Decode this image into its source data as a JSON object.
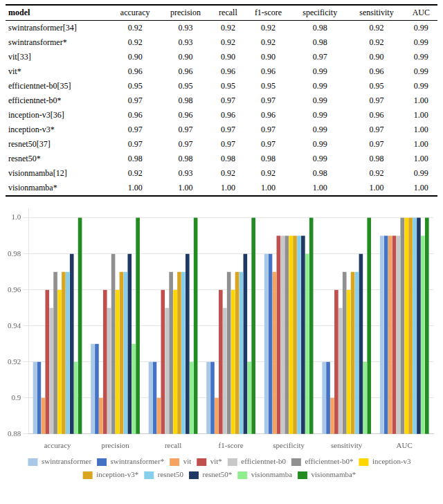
{
  "chart_data": [
    {
      "type": "table",
      "columns": [
        "model",
        "accuracy",
        "precision",
        "recall",
        "f1-score",
        "specificity",
        "sensitivity",
        "AUC"
      ],
      "rows": [
        [
          "swintransformer[34]",
          "0.92",
          "0.93",
          "0.92",
          "0.92",
          "0.98",
          "0.92",
          "0.99"
        ],
        [
          "swintransformer*",
          "0.92",
          "0.93",
          "0.92",
          "0.92",
          "0.98",
          "0.92",
          "0.99"
        ],
        [
          "vit[33]",
          "0.90",
          "0.90",
          "0.90",
          "0.90",
          "0.97",
          "0.90",
          "0.99"
        ],
        [
          "vit*",
          "0.96",
          "0.96",
          "0.96",
          "0.96",
          "0.99",
          "0.96",
          "0.99"
        ],
        [
          "efficientnet-b0[35]",
          "0.95",
          "0.95",
          "0.95",
          "0.95",
          "0.99",
          "0.95",
          "0.99"
        ],
        [
          "efficientnet-b0*",
          "0.97",
          "0.98",
          "0.97",
          "0.97",
          "0.99",
          "0.97",
          "1.00"
        ],
        [
          "inception-v3[36]",
          "0.96",
          "0.96",
          "0.96",
          "0.96",
          "0.99",
          "0.96",
          "1.00"
        ],
        [
          "inception-v3*",
          "0.97",
          "0.97",
          "0.97",
          "0.97",
          "0.99",
          "0.97",
          "1.00"
        ],
        [
          "resnet50[37]",
          "0.97",
          "0.97",
          "0.97",
          "0.97",
          "0.99",
          "0.97",
          "1.00"
        ],
        [
          "resnet50*",
          "0.98",
          "0.98",
          "0.98",
          "0.98",
          "0.99",
          "0.98",
          "1.00"
        ],
        [
          "visionmamba[12]",
          "0.92",
          "0.93",
          "0.92",
          "0.92",
          "0.98",
          "0.92",
          "0.99"
        ],
        [
          "visionmamba*",
          "1.00",
          "1.00",
          "1.00",
          "1.00",
          "1.00",
          "1.00",
          "1.00"
        ]
      ]
    },
    {
      "type": "bar",
      "categories": [
        "accuracy",
        "precision",
        "recall",
        "f1-score",
        "specificity",
        "sensitivity",
        "AUC"
      ],
      "series": [
        {
          "name": "swintransformer",
          "color": "#A8C8E8",
          "values": [
            0.92,
            0.93,
            0.92,
            0.92,
            0.98,
            0.92,
            0.99
          ]
        },
        {
          "name": "swintransformer*",
          "color": "#4472C4",
          "values": [
            0.92,
            0.93,
            0.92,
            0.92,
            0.98,
            0.92,
            0.99
          ]
        },
        {
          "name": "vit",
          "color": "#F4A460",
          "values": [
            0.9,
            0.9,
            0.9,
            0.9,
            0.97,
            0.9,
            0.99
          ]
        },
        {
          "name": "vit*",
          "color": "#C0504D",
          "values": [
            0.96,
            0.96,
            0.96,
            0.96,
            0.99,
            0.96,
            0.99
          ]
        },
        {
          "name": "efficientnet-b0",
          "color": "#C8C8C8",
          "values": [
            0.95,
            0.95,
            0.95,
            0.95,
            0.99,
            0.95,
            0.99
          ]
        },
        {
          "name": "efficientnet-b0*",
          "color": "#909090",
          "values": [
            0.97,
            0.98,
            0.97,
            0.97,
            0.99,
            0.97,
            1.0
          ]
        },
        {
          "name": "inception-v3",
          "color": "#FFD700",
          "values": [
            0.96,
            0.96,
            0.96,
            0.96,
            0.99,
            0.96,
            1.0
          ]
        },
        {
          "name": "inception-v3*",
          "color": "#DAA520",
          "values": [
            0.97,
            0.97,
            0.97,
            0.97,
            0.99,
            0.97,
            1.0
          ]
        },
        {
          "name": "resnet50",
          "color": "#87CEEB",
          "values": [
            0.97,
            0.97,
            0.97,
            0.97,
            0.99,
            0.97,
            1.0
          ]
        },
        {
          "name": "resnet50*",
          "color": "#1F3864",
          "values": [
            0.98,
            0.98,
            0.98,
            0.98,
            0.99,
            0.98,
            1.0
          ]
        },
        {
          "name": "visionmamba",
          "color": "#90EE90",
          "values": [
            0.92,
            0.93,
            0.92,
            0.92,
            0.98,
            0.92,
            0.99
          ]
        },
        {
          "name": "visionmamba*",
          "color": "#228B22",
          "values": [
            1.0,
            1.0,
            1.0,
            1.0,
            1.0,
            1.0,
            1.0
          ]
        }
      ],
      "ylim": [
        0.88,
        1.005
      ],
      "yticks": [
        0.88,
        0.9,
        0.92,
        0.94,
        0.96,
        0.98,
        {
          "value": 1.0,
          "label": "1.0"
        }
      ],
      "grid": true,
      "legend": "bottom"
    }
  ]
}
